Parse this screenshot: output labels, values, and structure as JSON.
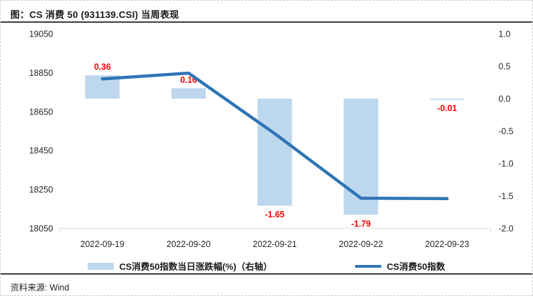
{
  "figure": {
    "title": "图：CS 消费 50 (931139.CSI) 当周表现",
    "source_label": "资料来源:  Wind"
  },
  "chart_data": {
    "type": "combo",
    "categories": [
      "2022-09-19",
      "2022-09-20",
      "2022-09-21",
      "2022-09-22",
      "2022-09-23"
    ],
    "series": [
      {
        "name": "CS消费50指数当日涨跌幅(%)（右轴）",
        "type": "bar",
        "axis": "right",
        "values": [
          0.36,
          0.16,
          -1.65,
          -1.79,
          -0.01
        ],
        "labels": [
          "0.36",
          "0.16",
          "-1.65",
          "-1.79",
          "-0.01"
        ],
        "color": "#BDD7EE",
        "label_color": "#FF0000"
      },
      {
        "name": "CS消费50指数",
        "type": "line",
        "axis": "left",
        "values": [
          18818,
          18848,
          18537,
          18205,
          18203
        ],
        "color": "#2E75B6"
      }
    ],
    "left_axis": {
      "min": 18050,
      "max": 19050,
      "ticks": [
        19050,
        18850,
        18650,
        18450,
        18250,
        18050
      ],
      "tick_labels": [
        "19050",
        "18850",
        "18650",
        "18450",
        "18250",
        "18050"
      ]
    },
    "right_axis": {
      "min": -2.0,
      "max": 1.0,
      "ticks": [
        1.0,
        0.5,
        0.0,
        -0.5,
        -1.0,
        -1.5,
        -2.0
      ],
      "tick_labels": [
        "1.0",
        "0.5",
        "0.0",
        "-0.5",
        "-1.0",
        "-1.5",
        "-2.0"
      ]
    },
    "grid": false,
    "legend_position": "bottom",
    "axis_line_color": "#d9d9d9",
    "tick_text_color": "#262626"
  }
}
